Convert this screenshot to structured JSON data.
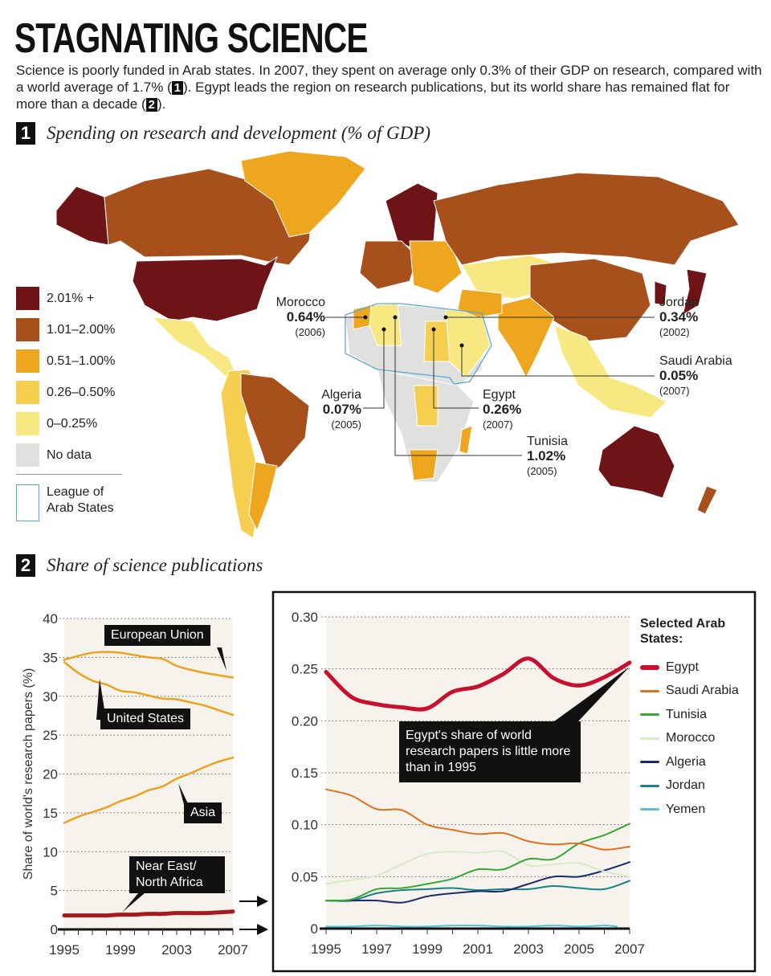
{
  "title": "STAGNATING SCIENCE",
  "intro": {
    "part1": "Science is poorly funded in Arab states. In 2007, they spent on average only 0.3% of their GDP on research, compared with a world average of 1.7% (",
    "badge1": "1",
    "part2": "). Egypt leads the region on research publications, but its world share has remained flat for more than a decade (",
    "badge2": "2",
    "part3": ")."
  },
  "section1": {
    "number": "1",
    "title": "Spending on research and development (% of GDP)"
  },
  "section2": {
    "number": "2",
    "title": "Share of science publications"
  },
  "map": {
    "legend": [
      {
        "label": "2.01% +",
        "color": "#6e1416"
      },
      {
        "label": "1.01–2.00%",
        "color": "#a8501c"
      },
      {
        "label": "0.51–1.00%",
        "color": "#eda61e"
      },
      {
        "label": "0.26–0.50%",
        "color": "#f7cf50"
      },
      {
        "label": "0–0.25%",
        "color": "#f8e882"
      },
      {
        "label": "No data",
        "color": "#e0e0de"
      }
    ],
    "league_label": "League of Arab States",
    "league_color": "#5aaad0",
    "callouts": [
      {
        "country": "Morocco",
        "value": "0.64%",
        "year": "(2006)"
      },
      {
        "country": "Jordan",
        "value": "0.34%",
        "year": "(2002)"
      },
      {
        "country": "Saudi Arabia",
        "value": "0.05%",
        "year": "(2007)"
      },
      {
        "country": "Algeria",
        "value": "0.07%",
        "year": "(2005)"
      },
      {
        "country": "Egypt",
        "value": "0.26%",
        "year": "(2007)"
      },
      {
        "country": "Tunisia",
        "value": "1.02%",
        "year": "(2005)"
      }
    ]
  },
  "chart_data": [
    {
      "type": "line",
      "title": "",
      "ylabel": "Share of world's research papers (%)",
      "xlabel": "",
      "x": [
        1995,
        1996,
        1997,
        1998,
        1999,
        2000,
        2001,
        2002,
        2003,
        2004,
        2005,
        2006,
        2007
      ],
      "xticks": [
        "1995",
        "1999",
        "2003",
        "2007"
      ],
      "yticks": [
        "0",
        "5",
        "10",
        "15",
        "20",
        "25",
        "30",
        "35",
        "40"
      ],
      "ylim": [
        0,
        40
      ],
      "grid": true,
      "series": [
        {
          "name": "European Union",
          "color": "#eda21e",
          "values": [
            34.7,
            35.2,
            35.6,
            35.7,
            35.6,
            35.3,
            35.0,
            34.8,
            33.9,
            33.4,
            33.0,
            32.7,
            32.4
          ]
        },
        {
          "name": "United States",
          "color": "#eda21e",
          "values": [
            34.4,
            33.0,
            32.0,
            31.5,
            30.7,
            30.5,
            30.1,
            29.7,
            29.6,
            29.2,
            28.8,
            28.2,
            27.6
          ]
        },
        {
          "name": "Asia",
          "color": "#eda21e",
          "values": [
            13.7,
            14.5,
            15.1,
            15.7,
            16.5,
            17.1,
            17.9,
            18.4,
            19.4,
            20.1,
            20.9,
            21.6,
            22.1
          ]
        },
        {
          "name": "Near East/ North Africa",
          "color": "#a51a1e",
          "values": [
            1.8,
            1.8,
            1.8,
            1.8,
            1.9,
            1.9,
            2.0,
            2.0,
            2.1,
            2.1,
            2.1,
            2.2,
            2.3
          ]
        }
      ]
    },
    {
      "type": "line",
      "title": "",
      "legend_title": "Selected Arab States:",
      "legend_placement": "right",
      "x": [
        1995,
        1996,
        1997,
        1998,
        1999,
        2000,
        2001,
        2002,
        2003,
        2004,
        2005,
        2006,
        2007
      ],
      "xticks": [
        "1995",
        "1997",
        "1999",
        "2001",
        "2003",
        "2005",
        "2007"
      ],
      "yticks": [
        "0",
        "0.05",
        "0.10",
        "0.15",
        "0.20",
        "0.25",
        "0.30"
      ],
      "ylim": [
        0,
        0.3
      ],
      "grid": true,
      "annotation": "Egypt's share of world research papers is little more than in 1995",
      "series": [
        {
          "name": "Egypt",
          "color": "#c8102e",
          "values": [
            0.247,
            0.223,
            0.216,
            0.213,
            0.212,
            0.228,
            0.233,
            0.245,
            0.26,
            0.241,
            0.234,
            0.242,
            0.256
          ]
        },
        {
          "name": "Saudi Arabia",
          "color": "#e0701e",
          "values": [
            0.134,
            0.128,
            0.115,
            0.114,
            0.1,
            0.095,
            0.091,
            0.092,
            0.084,
            0.081,
            0.082,
            0.076,
            0.079
          ]
        },
        {
          "name": "Tunisia",
          "color": "#3aa63a",
          "values": [
            0.027,
            0.028,
            0.038,
            0.039,
            0.043,
            0.048,
            0.057,
            0.057,
            0.067,
            0.067,
            0.082,
            0.09,
            0.101
          ]
        },
        {
          "name": "Morocco",
          "color": "#d6ebc6",
          "values": [
            0.043,
            0.047,
            0.051,
            0.062,
            0.072,
            0.074,
            0.073,
            0.074,
            0.061,
            0.062,
            0.063,
            0.055,
            0.05
          ]
        },
        {
          "name": "Algeria",
          "color": "#1a2a6c",
          "values": [
            0.027,
            0.027,
            0.027,
            0.025,
            0.031,
            0.034,
            0.036,
            0.036,
            0.043,
            0.05,
            0.05,
            0.056,
            0.064
          ]
        },
        {
          "name": "Jordan",
          "color": "#1a8282",
          "values": [
            0.027,
            0.027,
            0.034,
            0.037,
            0.038,
            0.039,
            0.037,
            0.038,
            0.038,
            0.041,
            0.039,
            0.038,
            0.046
          ]
        },
        {
          "name": "Yemen",
          "color": "#5cc0d2",
          "values": [
            0.002,
            0.002,
            0.003,
            0.002,
            0.002,
            0.003,
            0.003,
            0.002,
            0.002,
            0.003,
            0.002,
            0.003,
            null
          ]
        }
      ]
    }
  ]
}
